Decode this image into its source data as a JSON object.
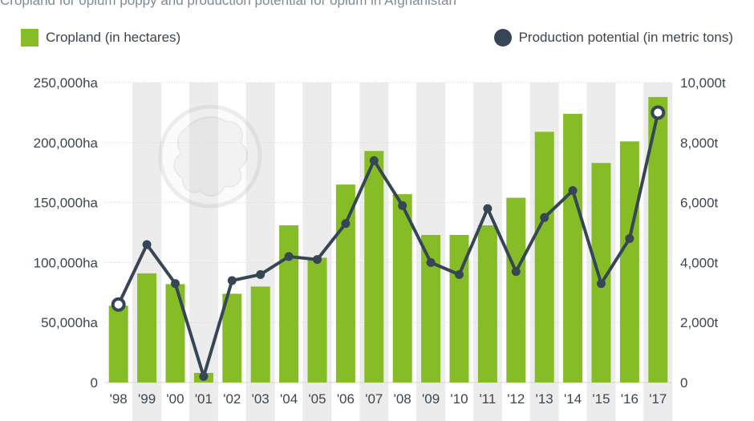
{
  "title": "Cropland for opium poppy and production potential for opium in Afghanistan",
  "legend": {
    "bar_label": "Cropland (in hectares)",
    "line_label": "Production potential (in metric tons)"
  },
  "colors": {
    "bar": "#86bc25",
    "line": "#374656",
    "band": "#ececec",
    "grid": "#d6d6d6"
  },
  "chart_data": {
    "type": "bar+line",
    "categories": [
      "'98",
      "'99",
      "'00",
      "'01",
      "'02",
      "'03",
      "'04",
      "'05",
      "'06",
      "'07",
      "'08",
      "'09",
      "'10",
      "'11",
      "'12",
      "'13",
      "'14",
      "'15",
      "'16",
      "'17"
    ],
    "series": [
      {
        "name": "Cropland (in hectares)",
        "type": "bar",
        "axis": "left",
        "values": [
          64000,
          91000,
          82000,
          8000,
          74000,
          80000,
          131000,
          104000,
          165000,
          193000,
          157000,
          123000,
          123000,
          131000,
          154000,
          209000,
          224000,
          183000,
          201000,
          238000
        ]
      },
      {
        "name": "Production potential (in metric tons)",
        "type": "line",
        "axis": "right",
        "values": [
          2600,
          4600,
          3300,
          200,
          3400,
          3600,
          4200,
          4100,
          5300,
          7400,
          5900,
          4000,
          3600,
          5800,
          3700,
          5500,
          6400,
          3300,
          4800,
          9000
        ]
      }
    ],
    "y_left": {
      "ylim": [
        0,
        250000
      ],
      "ticks": [
        "0",
        "50,000ha",
        "100,000ha",
        "150,000ha",
        "200,000ha",
        "250,000ha"
      ]
    },
    "y_right": {
      "ylim": [
        0,
        10000
      ],
      "ticks": [
        "0",
        "2,000t",
        "4,000t",
        "6,000t",
        "8,000t",
        "10,000t"
      ]
    },
    "grid": true,
    "legend_position": "top"
  }
}
